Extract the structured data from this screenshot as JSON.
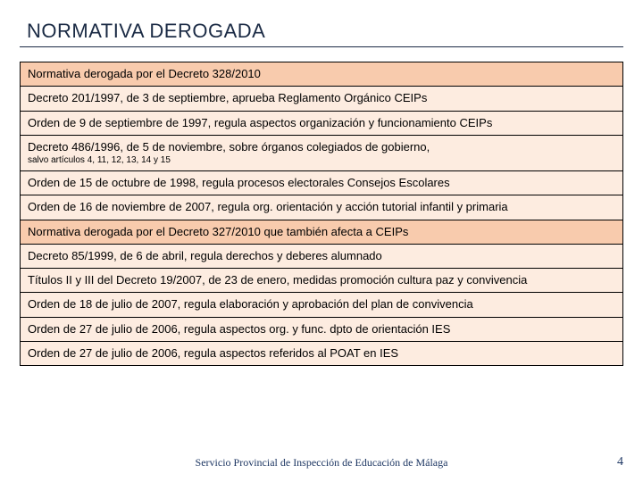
{
  "title": "NORMATIVA DEROGADA",
  "colors": {
    "header_bg": "#f8cbad",
    "body_bg": "#fdece0",
    "border": "#000000",
    "title_color": "#1a2a44",
    "footer_color": "#1f3864"
  },
  "rows": [
    {
      "kind": "header",
      "text": "Normativa derogada por el Decreto 328/2010"
    },
    {
      "kind": "body",
      "text": "Decreto 201/1997, de 3 de septiembre, aprueba Reglamento Orgánico CEIPs"
    },
    {
      "kind": "body",
      "text": "Orden de 9 de septiembre de 1997, regula aspectos organización y funcionamiento CEIPs"
    },
    {
      "kind": "body",
      "text": "Decreto 486/1996, de 5 de noviembre, sobre órganos colegiados de gobierno,",
      "note": "salvo artículos 4, 11, 12, 13, 14 y 15"
    },
    {
      "kind": "body",
      "text": "Orden de 15 de octubre de 1998, regula procesos electorales Consejos Escolares"
    },
    {
      "kind": "body",
      "text": "Orden de 16 de noviembre de 2007, regula org. orientación y acción tutorial infantil y primaria"
    },
    {
      "kind": "header",
      "text": "Normativa derogada por el Decreto 327/2010 que también afecta a CEIPs"
    },
    {
      "kind": "body",
      "text": "Decreto 85/1999, de 6 de abril, regula derechos y deberes alumnado"
    },
    {
      "kind": "body",
      "text": "Títulos II y III del Decreto 19/2007, de 23 de enero, medidas promoción cultura paz y convivencia"
    },
    {
      "kind": "body",
      "text": "Orden de 18 de julio de 2007, regula elaboración y aprobación del plan de convivencia"
    },
    {
      "kind": "body",
      "text": "Orden de 27 de julio de 2006, regula aspectos org. y func. dpto de orientación IES"
    },
    {
      "kind": "body",
      "text": "Orden de 27 de julio de 2006, regula aspectos referidos al POAT en IES"
    }
  ],
  "footer": "Servicio Provincial de Inspección de Educación de Málaga",
  "page_number": "4"
}
